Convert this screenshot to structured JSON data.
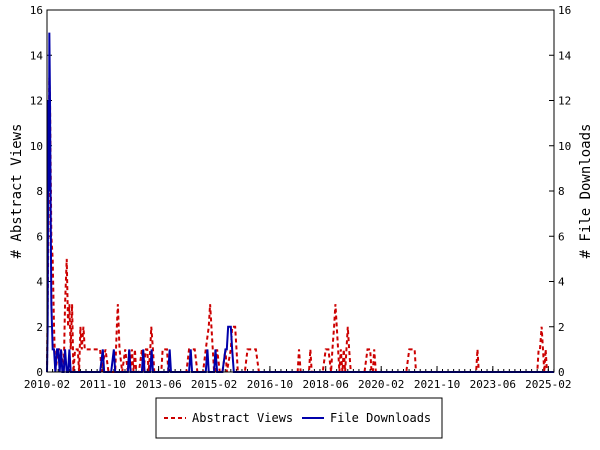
{
  "chart_data": {
    "type": "line",
    "xlabel": "",
    "ylabel_left": "# Abstract Views",
    "ylabel_right": "# File Downloads",
    "ylim": [
      0,
      16
    ],
    "yticks": [
      0,
      2,
      4,
      6,
      8,
      10,
      12,
      14,
      16
    ],
    "xlim": [
      2010.08,
      2025.25
    ],
    "xticks": [
      {
        "label": "2010-02",
        "x": 2010.08
      },
      {
        "label": "2011-10",
        "x": 2011.75
      },
      {
        "label": "2013-06",
        "x": 2013.42
      },
      {
        "label": "2015-02",
        "x": 2015.08
      },
      {
        "label": "2016-10",
        "x": 2016.75
      },
      {
        "label": "2018-06",
        "x": 2018.42
      },
      {
        "label": "2020-02",
        "x": 2020.08
      },
      {
        "label": "2021-10",
        "x": 2021.75
      },
      {
        "label": "2023-06",
        "x": 2023.42
      },
      {
        "label": "2025-02",
        "x": 2025.08
      }
    ],
    "legend_position": "bottom",
    "series": [
      {
        "name": "Abstract Views",
        "color": "#cc0000",
        "style": "dashed",
        "axis": "left",
        "points": [
          [
            2010.08,
            0
          ],
          [
            2010.12,
            6
          ],
          [
            2010.15,
            13
          ],
          [
            2010.17,
            12
          ],
          [
            2010.21,
            6
          ],
          [
            2010.25,
            5
          ],
          [
            2010.29,
            2
          ],
          [
            2010.33,
            0
          ],
          [
            2010.42,
            1
          ],
          [
            2010.5,
            1
          ],
          [
            2010.58,
            0
          ],
          [
            2010.62,
            3
          ],
          [
            2010.67,
            5
          ],
          [
            2010.71,
            2
          ],
          [
            2010.75,
            3
          ],
          [
            2010.79,
            1
          ],
          [
            2010.83,
            3
          ],
          [
            2010.87,
            0
          ],
          [
            2010.92,
            1
          ],
          [
            2011.0,
            1
          ],
          [
            2011.04,
            0
          ],
          [
            2011.08,
            2
          ],
          [
            2011.12,
            1
          ],
          [
            2011.17,
            2
          ],
          [
            2011.21,
            1
          ],
          [
            2011.25,
            1
          ],
          [
            2011.33,
            1
          ],
          [
            2011.42,
            1
          ],
          [
            2011.5,
            1
          ],
          [
            2011.58,
            1
          ],
          [
            2011.67,
            1
          ],
          [
            2011.71,
            0
          ],
          [
            2011.83,
            1
          ],
          [
            2011.92,
            0
          ],
          [
            2012.0,
            0
          ],
          [
            2012.12,
            0
          ],
          [
            2012.17,
            2
          ],
          [
            2012.2,
            3
          ],
          [
            2012.25,
            1
          ],
          [
            2012.33,
            0
          ],
          [
            2012.42,
            1
          ],
          [
            2012.5,
            0
          ],
          [
            2012.54,
            1
          ],
          [
            2012.58,
            0
          ],
          [
            2012.62,
            1
          ],
          [
            2012.67,
            0
          ],
          [
            2012.71,
            1
          ],
          [
            2012.75,
            0
          ],
          [
            2012.83,
            0
          ],
          [
            2012.92,
            1
          ],
          [
            2012.96,
            0
          ],
          [
            2013.04,
            1
          ],
          [
            2013.08,
            1
          ],
          [
            2013.12,
            0
          ],
          [
            2013.17,
            1
          ],
          [
            2013.2,
            2
          ],
          [
            2013.25,
            1
          ],
          [
            2013.29,
            0
          ],
          [
            2013.5,
            0
          ],
          [
            2013.54,
            1
          ],
          [
            2013.62,
            1
          ],
          [
            2013.67,
            1
          ],
          [
            2013.71,
            0
          ],
          [
            2013.92,
            0
          ],
          [
            2014.25,
            0
          ],
          [
            2014.33,
            1
          ],
          [
            2014.42,
            1
          ],
          [
            2014.5,
            1
          ],
          [
            2014.58,
            0
          ],
          [
            2014.75,
            0
          ],
          [
            2014.83,
            1
          ],
          [
            2014.92,
            2
          ],
          [
            2014.96,
            3
          ],
          [
            2015.0,
            2
          ],
          [
            2015.04,
            1
          ],
          [
            2015.08,
            0
          ],
          [
            2015.12,
            0
          ],
          [
            2015.17,
            1
          ],
          [
            2015.25,
            0
          ],
          [
            2015.33,
            0
          ],
          [
            2015.42,
            1
          ],
          [
            2015.46,
            0
          ],
          [
            2015.58,
            1
          ],
          [
            2015.62,
            2
          ],
          [
            2015.67,
            2
          ],
          [
            2015.71,
            2
          ],
          [
            2015.75,
            1
          ],
          [
            2015.79,
            0
          ],
          [
            2016.0,
            0
          ],
          [
            2016.08,
            1
          ],
          [
            2016.17,
            1
          ],
          [
            2016.25,
            1
          ],
          [
            2016.33,
            1
          ],
          [
            2016.42,
            0
          ],
          [
            2017.58,
            0
          ],
          [
            2017.62,
            1
          ],
          [
            2017.67,
            0
          ],
          [
            2017.92,
            0
          ],
          [
            2017.96,
            1
          ],
          [
            2018.0,
            0
          ],
          [
            2018.33,
            0
          ],
          [
            2018.42,
            1
          ],
          [
            2018.5,
            1
          ],
          [
            2018.58,
            0
          ],
          [
            2018.62,
            1
          ],
          [
            2018.67,
            2
          ],
          [
            2018.71,
            3
          ],
          [
            2018.75,
            2
          ],
          [
            2018.79,
            1
          ],
          [
            2018.83,
            0
          ],
          [
            2018.87,
            1
          ],
          [
            2018.92,
            0
          ],
          [
            2018.96,
            1
          ],
          [
            2019.0,
            0
          ],
          [
            2019.04,
            1
          ],
          [
            2019.08,
            2
          ],
          [
            2019.12,
            1
          ],
          [
            2019.17,
            0
          ],
          [
            2019.58,
            0
          ],
          [
            2019.67,
            1
          ],
          [
            2019.75,
            1
          ],
          [
            2019.79,
            0
          ],
          [
            2019.83,
            0
          ],
          [
            2019.87,
            1
          ],
          [
            2019.92,
            0
          ],
          [
            2020.83,
            0
          ],
          [
            2020.92,
            1
          ],
          [
            2021.0,
            1
          ],
          [
            2021.08,
            1
          ],
          [
            2021.12,
            0
          ],
          [
            2022.92,
            0
          ],
          [
            2022.96,
            1
          ],
          [
            2023.0,
            0
          ],
          [
            2024.75,
            0
          ],
          [
            2024.79,
            1
          ],
          [
            2024.83,
            1
          ],
          [
            2024.88,
            2
          ],
          [
            2024.92,
            1
          ],
          [
            2024.96,
            0
          ],
          [
            2025.0,
            1
          ],
          [
            2025.04,
            0
          ],
          [
            2025.08,
            0
          ],
          [
            2025.25,
            0
          ]
        ]
      },
      {
        "name": "File Downloads",
        "color": "#0000aa",
        "style": "solid",
        "axis": "right",
        "points": [
          [
            2010.08,
            0
          ],
          [
            2010.1,
            2
          ],
          [
            2010.12,
            12
          ],
          [
            2010.14,
            8
          ],
          [
            2010.15,
            15
          ],
          [
            2010.17,
            12
          ],
          [
            2010.19,
            7
          ],
          [
            2010.21,
            3
          ],
          [
            2010.25,
            1
          ],
          [
            2010.29,
            1
          ],
          [
            2010.33,
            0
          ],
          [
            2010.38,
            1
          ],
          [
            2010.42,
            1
          ],
          [
            2010.46,
            0
          ],
          [
            2010.5,
            1
          ],
          [
            2010.54,
            0
          ],
          [
            2010.58,
            0
          ],
          [
            2010.62,
            1
          ],
          [
            2010.67,
            0
          ],
          [
            2010.71,
            0
          ],
          [
            2010.75,
            1
          ],
          [
            2010.79,
            0
          ],
          [
            2011.67,
            0
          ],
          [
            2011.75,
            1
          ],
          [
            2011.79,
            0
          ],
          [
            2012.0,
            0
          ],
          [
            2012.08,
            1
          ],
          [
            2012.12,
            0
          ],
          [
            2012.5,
            0
          ],
          [
            2012.54,
            1
          ],
          [
            2012.58,
            0
          ],
          [
            2012.92,
            0
          ],
          [
            2012.96,
            1
          ],
          [
            2013.0,
            0
          ],
          [
            2013.17,
            0
          ],
          [
            2013.21,
            1
          ],
          [
            2013.25,
            0
          ],
          [
            2013.71,
            0
          ],
          [
            2013.75,
            1
          ],
          [
            2013.79,
            0
          ],
          [
            2014.33,
            0
          ],
          [
            2014.38,
            1
          ],
          [
            2014.42,
            0
          ],
          [
            2014.83,
            0
          ],
          [
            2014.88,
            1
          ],
          [
            2014.92,
            0
          ],
          [
            2015.08,
            0
          ],
          [
            2015.12,
            1
          ],
          [
            2015.17,
            0
          ],
          [
            2015.33,
            0
          ],
          [
            2015.42,
            1
          ],
          [
            2015.46,
            1
          ],
          [
            2015.5,
            2
          ],
          [
            2015.54,
            2
          ],
          [
            2015.58,
            2
          ],
          [
            2015.62,
            1
          ],
          [
            2015.67,
            0
          ],
          [
            2025.25,
            0
          ]
        ]
      }
    ]
  }
}
